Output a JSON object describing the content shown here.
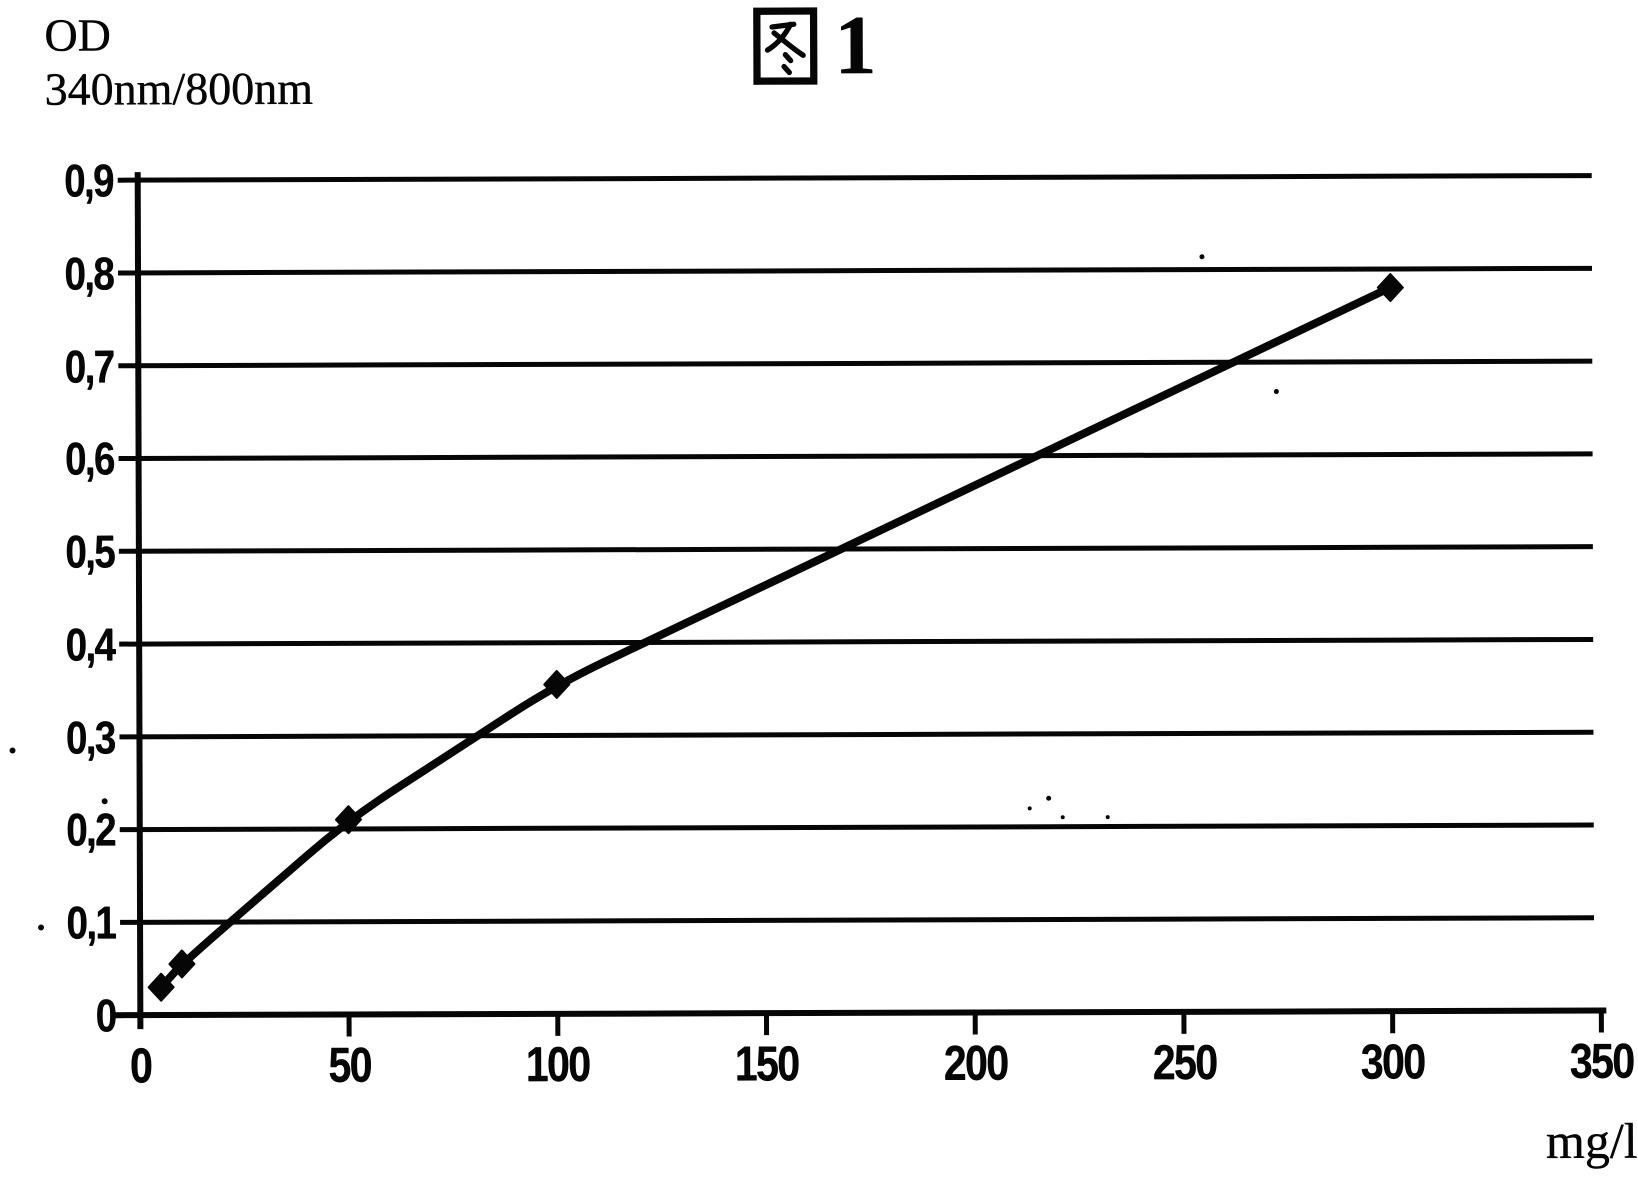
{
  "figure": {
    "title_text": "图1",
    "figure_number": "1",
    "y_axis_unit_line1": "OD",
    "y_axis_unit_line2": "340nm/800nm",
    "x_axis_unit": "mg/l"
  },
  "chart_data": {
    "type": "line",
    "title": "图1",
    "xlabel": "mg/l",
    "ylabel": "OD 340nm/800nm",
    "x": [
      5,
      10,
      50,
      100,
      300
    ],
    "y": [
      0.03,
      0.055,
      0.21,
      0.355,
      0.78
    ],
    "series_name": "OD 340nm/800nm calibration curve",
    "marker": "diamond",
    "marker_color": "#060606",
    "line_color": "#060606",
    "background_color": "#ffffff",
    "xlim": [
      0,
      350
    ],
    "ylim": [
      0,
      0.9
    ],
    "x_tick_values": [
      0,
      50,
      100,
      150,
      200,
      250,
      300,
      350
    ],
    "x_tick_labels": [
      "0",
      "50",
      "100",
      "150",
      "200",
      "250",
      "300",
      "350"
    ],
    "y_tick_values": [
      0,
      0.1,
      0.2,
      0.3,
      0.4,
      0.5,
      0.6,
      0.7,
      0.8,
      0.9
    ],
    "y_tick_labels": [
      "0",
      "0,1",
      "0,2",
      "0,3",
      "0,4",
      "0,5",
      "0,6",
      "0,7",
      "0,8",
      "0,9"
    ],
    "grid": "horizontal",
    "legend": "none",
    "decimal_separator": ","
  }
}
